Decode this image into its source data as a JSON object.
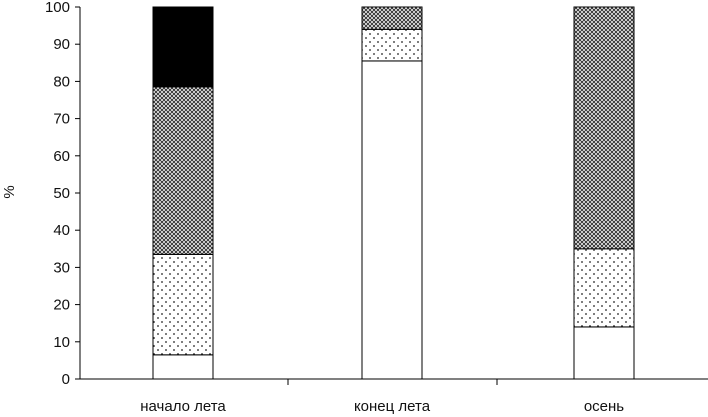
{
  "chart_data": {
    "type": "bar",
    "stacked": true,
    "categories": [
      "начало лета",
      "конец лета",
      "осень"
    ],
    "series": [
      {
        "pattern": "white",
        "values": [
          6.5,
          85.5,
          14
        ]
      },
      {
        "pattern": "dotted",
        "values": [
          27,
          8.5,
          21
        ]
      },
      {
        "pattern": "crosshatch",
        "values": [
          45,
          6,
          65
        ]
      },
      {
        "pattern": "black",
        "values": [
          21.5,
          0,
          0
        ]
      }
    ],
    "ylabel": "%",
    "ylim": [
      0,
      100
    ],
    "yticks": [
      0,
      10,
      20,
      30,
      40,
      50,
      60,
      70,
      80,
      90,
      100
    ],
    "grid": false
  }
}
